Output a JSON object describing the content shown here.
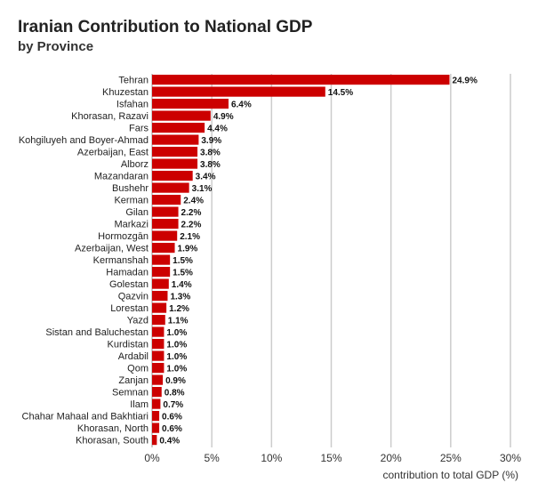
{
  "title": "Iranian Contribution to National GDP",
  "subtitle": "by Province",
  "colors": {
    "bar": "#cc0000",
    "grid": "#cccccc"
  },
  "chart_data": {
    "type": "bar",
    "orientation": "horizontal",
    "title": "Iranian Contribution to National GDP",
    "subtitle": "by Province",
    "xlabel": "contribution to total GDP (%)",
    "ylabel": "",
    "xlim": [
      0,
      30
    ],
    "xticks": [
      0,
      5,
      10,
      15,
      20,
      25,
      30
    ],
    "xtick_labels": [
      "0%",
      "5%",
      "10%",
      "15%",
      "20%",
      "25%",
      "30%"
    ],
    "grid": true,
    "categories": [
      "Tehran",
      "Khuzestan",
      "Isfahan",
      "Khorasan, Razavi",
      "Fars",
      "Kohgiluyeh and Boyer-Ahmad",
      "Azerbaijan, East",
      "Alborz",
      "Mazandaran",
      "Bushehr",
      "Kerman",
      "Gilan",
      "Markazi",
      "Hormozgān",
      "Azerbaijan, West",
      "Kermanshah",
      "Hamadan",
      "Golestan",
      "Qazvin",
      "Lorestan",
      "Yazd",
      "Sistan and Baluchestan",
      "Kurdistan",
      "Ardabil",
      "Qom",
      "Zanjan",
      "Semnan",
      "Ilam",
      "Chahar Mahaal and Bakhtiari",
      "Khorasan, North",
      "Khorasan, South"
    ],
    "values": [
      24.9,
      14.5,
      6.4,
      4.9,
      4.4,
      3.9,
      3.8,
      3.8,
      3.4,
      3.1,
      2.4,
      2.2,
      2.2,
      2.1,
      1.9,
      1.5,
      1.5,
      1.4,
      1.3,
      1.2,
      1.1,
      1.0,
      1.0,
      1.0,
      1.0,
      0.9,
      0.8,
      0.7,
      0.6,
      0.6,
      0.4
    ],
    "value_labels": [
      "24.9%",
      "14.5%",
      "6.4%",
      "4.9%",
      "4.4%",
      "3.9%",
      "3.8%",
      "3.8%",
      "3.4%",
      "3.1%",
      "2.4%",
      "2.2%",
      "2.2%",
      "2.1%",
      "1.9%",
      "1.5%",
      "1.5%",
      "1.4%",
      "1.3%",
      "1.2%",
      "1.1%",
      "1.0%",
      "1.0%",
      "1.0%",
      "1.0%",
      "0.9%",
      "0.8%",
      "0.7%",
      "0.6%",
      "0.6%",
      "0.4%"
    ]
  }
}
